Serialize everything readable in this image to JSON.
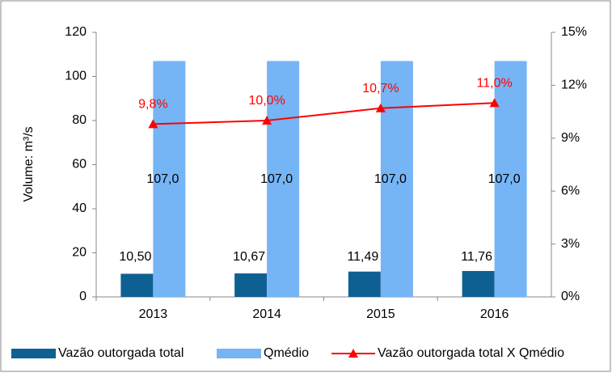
{
  "chart_data": {
    "type": "bar",
    "categories": [
      "2013",
      "2014",
      "2015",
      "2016"
    ],
    "ylabel": "Volume: m³/s",
    "series": [
      {
        "name": "Vazão outorgada total",
        "color": "#0f6092",
        "values": [
          10.5,
          10.67,
          11.49,
          11.76
        ],
        "value_labels": [
          "10,50",
          "10,67",
          "11,49",
          "11,76"
        ]
      },
      {
        "name": "Qmédio",
        "color": "#75b5f5",
        "values": [
          107.0,
          107.0,
          107.0,
          107.0
        ],
        "value_labels": [
          "107,0",
          "107,0",
          "107,0",
          "107,0"
        ]
      },
      {
        "name": "Vazão outorgada total X Qmédio",
        "color": "#ff0000",
        "type": "line",
        "axis": "y2",
        "values": [
          9.8,
          10.0,
          10.7,
          11.0
        ],
        "value_labels": [
          "9,8%",
          "10,0%",
          "10,7%",
          "11,0%"
        ]
      }
    ],
    "ylim": [
      0,
      120
    ],
    "yticks": [
      0,
      20,
      40,
      60,
      80,
      100,
      120
    ],
    "y2lim": [
      0,
      15
    ],
    "y2ticks": [
      {
        "value": 0,
        "label": "0%"
      },
      {
        "value": 3,
        "label": "3%"
      },
      {
        "value": 6,
        "label": "6%"
      },
      {
        "value": 9,
        "label": "9%"
      },
      {
        "value": 12,
        "label": "12%"
      },
      {
        "value": 15,
        "label": "15%"
      }
    ],
    "legend": "bottom"
  }
}
